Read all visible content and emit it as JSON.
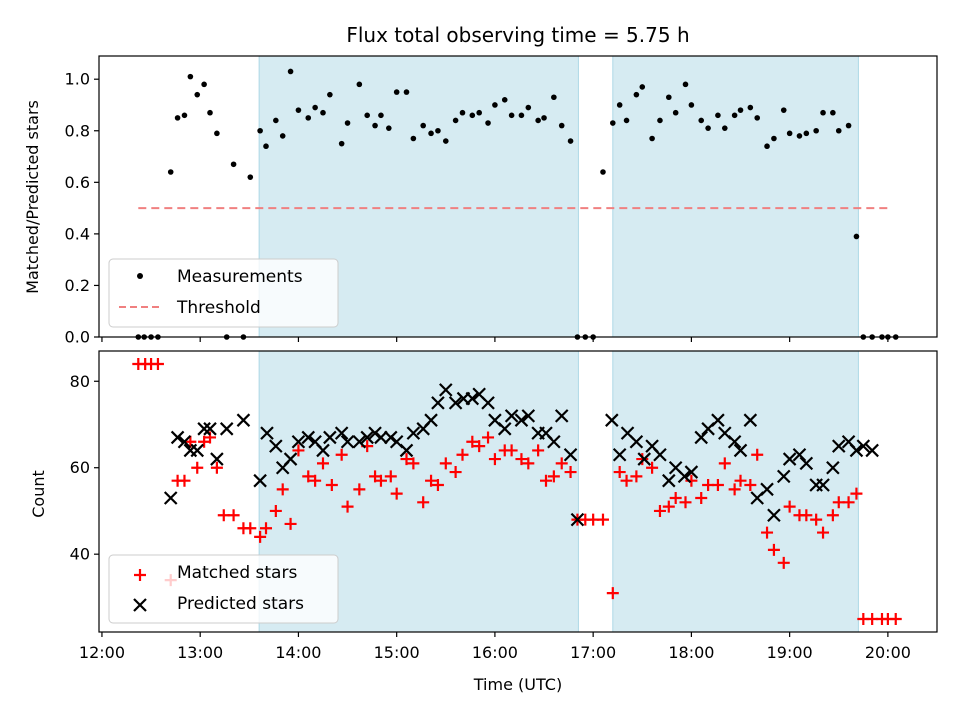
{
  "chart_data": [
    {
      "type": "scatter",
      "title": "Flux total observing time = 5.75 h",
      "xlabel": "",
      "ylabel": "Matched/Predicted stars",
      "ylim": [
        0,
        1.09
      ],
      "xlim": [
        11.97,
        20.5
      ],
      "x_unit": "hours UTC",
      "yticks": [
        "0.0",
        "0.2",
        "0.4",
        "0.6",
        "0.8",
        "1.0"
      ],
      "shaded_intervals": [
        [
          13.6,
          16.85
        ],
        [
          17.2,
          19.7
        ]
      ],
      "legend": {
        "placement": "bottom-left",
        "entries": [
          "Measurements",
          "Threshold"
        ]
      },
      "series": [
        {
          "name": "Measurements",
          "marker": "dot",
          "color": "#000000",
          "x": [
            12.37,
            12.43,
            12.5,
            12.57,
            12.7,
            12.77,
            12.84,
            12.9,
            12.97,
            13.04,
            13.1,
            13.17,
            13.27,
            13.34,
            13.44,
            13.51,
            13.61,
            13.67,
            13.77,
            13.84,
            13.92,
            14.0,
            14.1,
            14.17,
            14.25,
            14.32,
            14.44,
            14.5,
            14.62,
            14.7,
            14.78,
            14.84,
            14.92,
            15.0,
            15.1,
            15.17,
            15.27,
            15.35,
            15.42,
            15.5,
            15.6,
            15.67,
            15.77,
            15.84,
            15.93,
            16.0,
            16.1,
            16.17,
            16.27,
            16.34,
            16.44,
            16.5,
            16.6,
            16.68,
            16.77,
            16.84,
            16.92,
            17.0,
            17.1,
            17.2,
            17.27,
            17.34,
            17.44,
            17.5,
            17.6,
            17.68,
            17.77,
            17.84,
            17.94,
            18.0,
            18.1,
            18.17,
            18.27,
            18.34,
            18.44,
            18.5,
            18.6,
            18.67,
            18.77,
            18.84,
            18.94,
            19.0,
            19.1,
            19.17,
            19.27,
            19.34,
            19.44,
            19.5,
            19.6,
            19.68,
            19.75,
            19.84,
            19.94,
            20.0,
            20.08
          ],
          "y": [
            0.0,
            0.0,
            0.0,
            0.0,
            0.64,
            0.85,
            0.86,
            1.01,
            0.94,
            0.98,
            0.87,
            0.79,
            0.0,
            0.67,
            0.0,
            0.62,
            0.8,
            0.74,
            0.84,
            0.78,
            1.03,
            0.88,
            0.85,
            0.89,
            0.87,
            0.94,
            0.75,
            0.83,
            0.98,
            0.86,
            0.82,
            0.86,
            0.81,
            0.95,
            0.95,
            0.77,
            0.82,
            0.79,
            0.8,
            0.76,
            0.84,
            0.87,
            0.86,
            0.87,
            0.83,
            0.9,
            0.92,
            0.86,
            0.86,
            0.89,
            0.84,
            0.85,
            0.93,
            0.82,
            0.76,
            0.0,
            0.0,
            0.0,
            0.64,
            0.83,
            0.9,
            0.84,
            0.94,
            0.97,
            0.77,
            0.84,
            0.93,
            0.87,
            0.98,
            0.9,
            0.84,
            0.81,
            0.86,
            0.81,
            0.86,
            0.88,
            0.89,
            0.85,
            0.74,
            0.77,
            0.88,
            0.79,
            0.78,
            0.79,
            0.8,
            0.87,
            0.87,
            0.8,
            0.82,
            0.39,
            0.0,
            0.0,
            0.0,
            0.0,
            0.0
          ]
        },
        {
          "name": "Threshold",
          "style": "dashed",
          "color": "#f08080",
          "x": [
            12.37,
            20.03
          ],
          "y": [
            0.5,
            0.5
          ]
        }
      ]
    },
    {
      "type": "scatter",
      "title": "",
      "xlabel": "Time (UTC)",
      "ylabel": "Count",
      "ylim": [
        22,
        87
      ],
      "xlim": [
        11.97,
        20.5
      ],
      "x_unit": "hours UTC",
      "xticks": [
        "12:00",
        "13:00",
        "14:00",
        "15:00",
        "16:00",
        "17:00",
        "18:00",
        "19:00",
        "20:00"
      ],
      "yticks": [
        "40",
        "60",
        "80"
      ],
      "shaded_intervals": [
        [
          13.6,
          16.85
        ],
        [
          17.2,
          19.7
        ]
      ],
      "legend": {
        "placement": "bottom-left",
        "entries": [
          "Matched stars",
          "Predicted stars"
        ]
      },
      "series": [
        {
          "name": "Matched stars",
          "marker": "plus",
          "color": "#ff0000",
          "x": [
            12.37,
            12.44,
            12.5,
            12.57,
            12.7,
            12.77,
            12.84,
            12.9,
            12.97,
            13.04,
            13.1,
            13.17,
            13.24,
            13.34,
            13.44,
            13.51,
            13.61,
            13.67,
            13.77,
            13.84,
            13.92,
            14.0,
            14.1,
            14.17,
            14.25,
            14.34,
            14.44,
            14.5,
            14.62,
            14.7,
            14.78,
            14.84,
            14.94,
            15.0,
            15.1,
            15.17,
            15.27,
            15.35,
            15.42,
            15.5,
            15.6,
            15.67,
            15.77,
            15.84,
            15.93,
            16.0,
            16.1,
            16.17,
            16.27,
            16.34,
            16.44,
            16.52,
            16.6,
            16.68,
            16.77,
            16.84,
            16.92,
            17.0,
            17.1,
            17.2,
            17.27,
            17.34,
            17.44,
            17.5,
            17.6,
            17.68,
            17.77,
            17.84,
            17.94,
            18.0,
            18.1,
            18.17,
            18.27,
            18.34,
            18.44,
            18.5,
            18.6,
            18.67,
            18.77,
            18.84,
            18.94,
            19.0,
            19.1,
            19.17,
            19.27,
            19.34,
            19.44,
            19.5,
            19.6,
            19.68,
            19.75,
            19.84,
            19.94,
            20.0,
            20.08
          ],
          "y": [
            84,
            84,
            84,
            84,
            34,
            57,
            57,
            66,
            60,
            66,
            67,
            60,
            49,
            49,
            46,
            46,
            44,
            46,
            50,
            55,
            47,
            64,
            58,
            57,
            61,
            56,
            63,
            51,
            55,
            65,
            58,
            57,
            58,
            54,
            62,
            61,
            52,
            57,
            56,
            61,
            59,
            63,
            66,
            65,
            67,
            62,
            64,
            64,
            62,
            61,
            64,
            57,
            58,
            61,
            59,
            48,
            48,
            48,
            48,
            31,
            59,
            57,
            58,
            62,
            60,
            50,
            51,
            53,
            52,
            57,
            53,
            56,
            56,
            61,
            55,
            57,
            56,
            63,
            45,
            41,
            38,
            51,
            49,
            49,
            48,
            45,
            49,
            52,
            52,
            54,
            25,
            25,
            25,
            25,
            25
          ]
        },
        {
          "name": "Predicted stars",
          "marker": "x",
          "color": "#000000",
          "x": [
            12.7,
            12.77,
            12.84,
            12.9,
            12.97,
            13.04,
            13.1,
            13.17,
            13.27,
            13.44,
            13.61,
            13.68,
            13.77,
            13.84,
            13.92,
            14.0,
            14.1,
            14.17,
            14.25,
            14.32,
            14.44,
            14.5,
            14.62,
            14.7,
            14.78,
            14.84,
            14.94,
            15.0,
            15.1,
            15.17,
            15.27,
            15.35,
            15.42,
            15.5,
            15.6,
            15.68,
            15.77,
            15.84,
            15.93,
            16.0,
            16.1,
            16.17,
            16.27,
            16.34,
            16.44,
            16.52,
            16.6,
            16.68,
            16.77,
            16.84,
            17.19,
            17.27,
            17.35,
            17.44,
            17.52,
            17.6,
            17.68,
            17.77,
            17.84,
            17.93,
            18.0,
            18.1,
            18.17,
            18.27,
            18.34,
            18.44,
            18.5,
            18.6,
            18.67,
            18.77,
            18.84,
            18.94,
            19.0,
            19.1,
            19.17,
            19.27,
            19.34,
            19.44,
            19.5,
            19.6,
            19.68,
            19.75,
            19.84
          ],
          "y": [
            53,
            67,
            66,
            64,
            64,
            69,
            69,
            62,
            69,
            71,
            57,
            68,
            65,
            60,
            62,
            66,
            67,
            66,
            64,
            67,
            68,
            66,
            66,
            67,
            68,
            67,
            67,
            66,
            64,
            68,
            69,
            71,
            75,
            78,
            75,
            76,
            76,
            77,
            75,
            71,
            69,
            72,
            71,
            72,
            68,
            68,
            66,
            72,
            63,
            48,
            71,
            63,
            68,
            66,
            62,
            65,
            63,
            57,
            60,
            58,
            59,
            67,
            69,
            71,
            68,
            66,
            64,
            71,
            53,
            55,
            49,
            58,
            62,
            63,
            61,
            56,
            56,
            60,
            65,
            66,
            64,
            65,
            64
          ]
        }
      ]
    }
  ],
  "colors": {
    "shade": "#add8e6",
    "threshold": "#f08080",
    "matched": "#ff0000",
    "predicted": "#000000",
    "measurement": "#000000"
  }
}
